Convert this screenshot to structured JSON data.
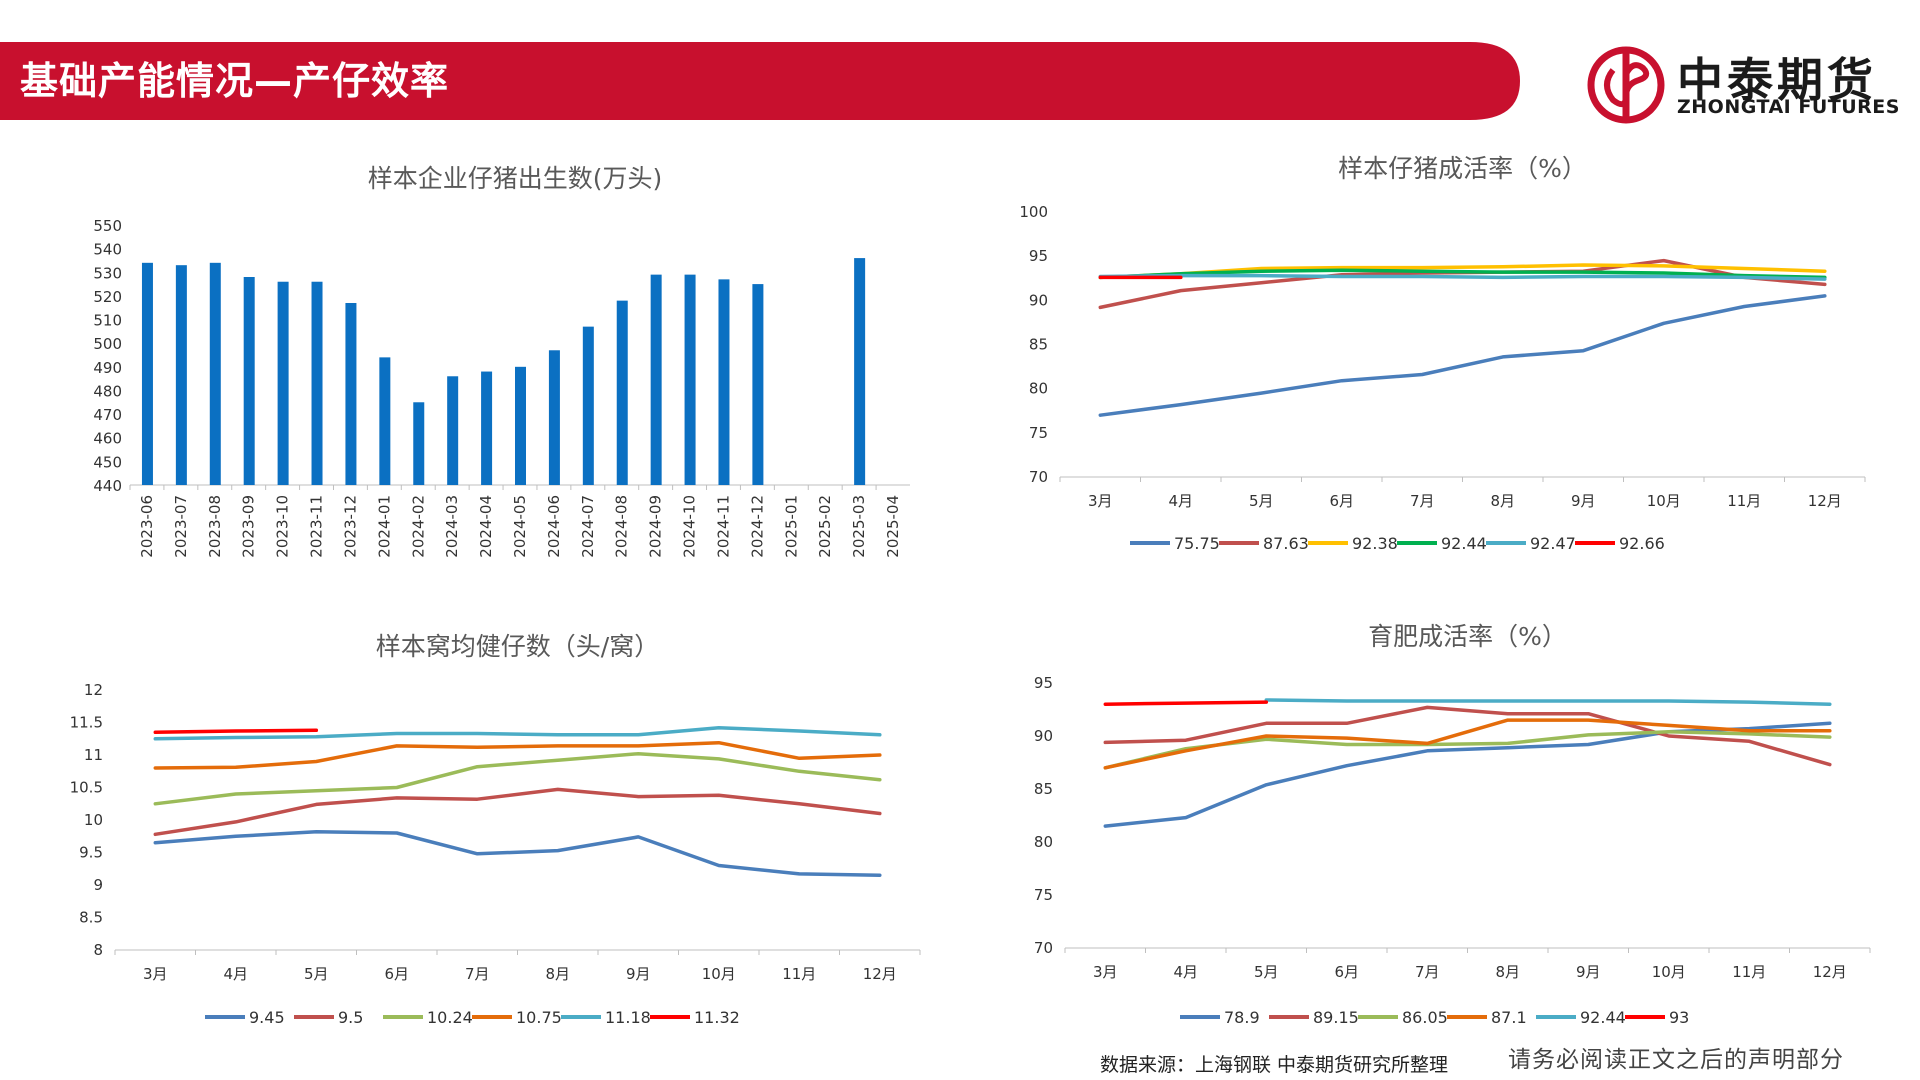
{
  "header": {
    "title": "基础产能情况—产仔效率"
  },
  "logo": {
    "name_cn": "中泰期货",
    "name_en": "ZHONGTAI FUTURES"
  },
  "footer": {
    "source": "数据来源：上海钢联   中泰期货研究所整理",
    "disclaimer": "请务必阅读正文之后的声明部分"
  },
  "colors": {
    "header_red": "#c8102e",
    "bar_blue": "#0b70c2"
  },
  "chart_data": [
    {
      "id": "births",
      "type": "bar",
      "title": "样本企业仔猪出生数(万头)",
      "categories": [
        "2023-06",
        "2023-07",
        "2023-08",
        "2023-09",
        "2023-10",
        "2023-11",
        "2023-12",
        "2024-01",
        "2024-02",
        "2024-03",
        "2024-04",
        "2024-05",
        "2024-06",
        "2024-07",
        "2024-08",
        "2024-09",
        "2024-10",
        "2024-11",
        "2024-12",
        "2025-01",
        "2025-02",
        "2025-03",
        "2025-04"
      ],
      "values": [
        534,
        533,
        534,
        528,
        526,
        526,
        517,
        494,
        475,
        486,
        488,
        490,
        497,
        507,
        518,
        529,
        529,
        527,
        525,
        null,
        null,
        536,
        null
      ],
      "ylim": [
        440,
        550
      ],
      "yticks": [
        440,
        450,
        460,
        470,
        480,
        490,
        500,
        510,
        520,
        530,
        540,
        550
      ],
      "color": "#0b70c2"
    },
    {
      "id": "piglet-survival",
      "type": "line",
      "title": "样本仔猪成活率（%）",
      "categories": [
        "3月",
        "4月",
        "5月",
        "6月",
        "7月",
        "8月",
        "9月",
        "10月",
        "11月",
        "12月"
      ],
      "ylim": [
        70,
        100
      ],
      "yticks": [
        70,
        75,
        80,
        85,
        90,
        95,
        100
      ],
      "series": [
        {
          "name": "75.75",
          "color": "#4a7ebb",
          "values": [
            77.0,
            78.2,
            79.5,
            80.9,
            81.6,
            83.6,
            84.3,
            87.4,
            89.3,
            90.5
          ]
        },
        {
          "name": "87.63",
          "color": "#c0504d",
          "values": [
            89.2,
            91.1,
            92.0,
            92.9,
            93.1,
            93.2,
            93.3,
            94.5,
            92.6,
            91.8
          ]
        },
        {
          "name": "92.38",
          "color": "#ffc000",
          "values": [
            92.6,
            93.0,
            93.6,
            93.7,
            93.7,
            93.8,
            94.0,
            93.9,
            93.6,
            93.3
          ]
        },
        {
          "name": "92.44",
          "color": "#00b050",
          "values": [
            92.6,
            93.0,
            93.3,
            93.4,
            93.3,
            93.2,
            93.2,
            93.1,
            92.8,
            92.6
          ]
        },
        {
          "name": "92.47",
          "color": "#4bacc6",
          "values": [
            92.7,
            92.8,
            92.8,
            92.7,
            92.7,
            92.6,
            92.7,
            92.7,
            92.6,
            92.4
          ]
        },
        {
          "name": "92.66",
          "color": "#ff0000",
          "values": [
            92.6,
            92.6,
            null,
            null,
            null,
            null,
            null,
            null,
            null,
            null
          ]
        }
      ]
    },
    {
      "id": "litter-size",
      "type": "line",
      "title": "样本窝均健仔数（头/窝）",
      "categories": [
        "3月",
        "4月",
        "5月",
        "6月",
        "7月",
        "8月",
        "9月",
        "10月",
        "11月",
        "12月"
      ],
      "ylim": [
        8,
        12
      ],
      "yticks": [
        8,
        8.5,
        9,
        9.5,
        10,
        10.5,
        11,
        11.5,
        12
      ],
      "series": [
        {
          "name": "9.45",
          "color": "#4a7ebb",
          "values": [
            9.65,
            9.75,
            9.82,
            9.8,
            9.48,
            9.53,
            9.74,
            9.3,
            9.17,
            9.15
          ]
        },
        {
          "name": "9.5",
          "color": "#c0504d",
          "values": [
            9.78,
            9.97,
            10.24,
            10.34,
            10.32,
            10.47,
            10.36,
            10.38,
            10.25,
            10.1
          ]
        },
        {
          "name": "10.24",
          "color": "#9bbb59",
          "values": [
            10.25,
            10.4,
            10.45,
            10.5,
            10.82,
            10.92,
            11.02,
            10.94,
            10.75,
            10.62
          ]
        },
        {
          "name": "10.75",
          "color": "#e46c0a",
          "values": [
            10.8,
            10.81,
            10.9,
            11.14,
            11.12,
            11.14,
            11.14,
            11.19,
            10.95,
            11.0
          ]
        },
        {
          "name": "11.18",
          "color": "#4bacc6",
          "values": [
            11.25,
            11.27,
            11.28,
            11.33,
            11.33,
            11.31,
            11.31,
            11.42,
            11.37,
            11.31
          ]
        },
        {
          "name": "11.32",
          "color": "#ff0000",
          "values": [
            11.35,
            11.37,
            11.38,
            null,
            null,
            null,
            null,
            null,
            null,
            null
          ]
        }
      ]
    },
    {
      "id": "fattening-survival",
      "type": "line",
      "title": "育肥成活率（%）",
      "categories": [
        "3月",
        "4月",
        "5月",
        "6月",
        "7月",
        "8月",
        "9月",
        "10月",
        "11月",
        "12月"
      ],
      "ylim": [
        70,
        95
      ],
      "yticks": [
        70,
        75,
        80,
        85,
        90,
        95
      ],
      "series": [
        {
          "name": "78.9",
          "color": "#4a7ebb",
          "values": [
            81.5,
            82.3,
            85.4,
            87.2,
            88.6,
            88.9,
            89.2,
            90.4,
            90.7,
            91.2
          ]
        },
        {
          "name": "89.15",
          "color": "#c0504d",
          "values": [
            89.4,
            89.6,
            91.2,
            91.2,
            92.7,
            92.1,
            92.1,
            90.0,
            89.5,
            87.3
          ]
        },
        {
          "name": "86.05",
          "color": "#9bbb59",
          "values": [
            87.0,
            88.8,
            89.7,
            89.2,
            89.2,
            89.3,
            90.1,
            90.4,
            90.2,
            89.9
          ]
        },
        {
          "name": "87.1",
          "color": "#e46c0a",
          "values": [
            87.0,
            88.6,
            90.0,
            89.8,
            89.3,
            91.5,
            91.5,
            91.0,
            90.5,
            90.5
          ]
        },
        {
          "name": "92.44",
          "color": "#4bacc6",
          "values": [
            null,
            null,
            93.4,
            93.3,
            93.3,
            93.3,
            93.3,
            93.3,
            93.2,
            93.0
          ]
        },
        {
          "name": "93",
          "color": "#ff0000",
          "values": [
            93.0,
            93.1,
            93.2,
            null,
            null,
            null,
            null,
            null,
            null,
            null
          ]
        }
      ]
    }
  ]
}
